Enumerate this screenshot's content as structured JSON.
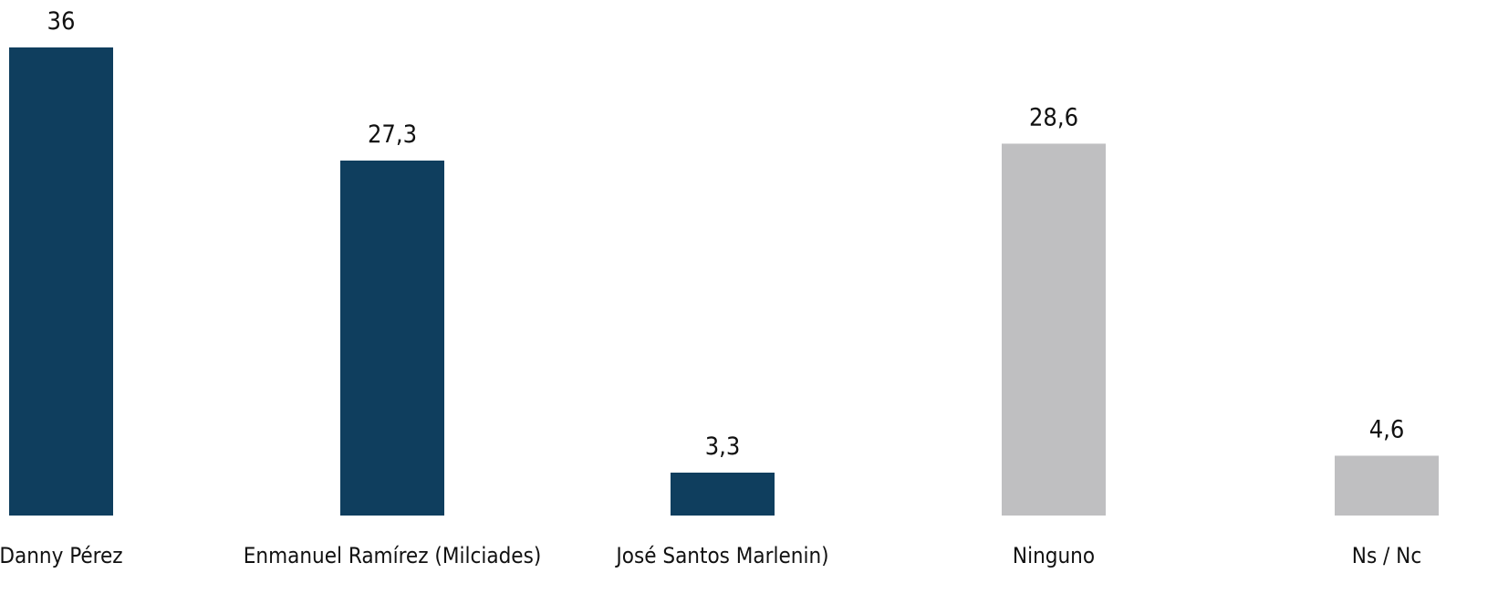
{
  "chart_data": {
    "type": "bar",
    "categories": [
      "Danny Pérez",
      "Enmanuel Ramírez (Milciades)",
      "José Santos Marlenin)",
      "Ninguno",
      "Ns / Nc"
    ],
    "values": [
      36,
      27.3,
      3.3,
      28.6,
      4.6
    ],
    "value_labels": [
      "36",
      "27,3",
      "3,3",
      "28,6",
      "4,6"
    ],
    "bar_colors": [
      "#0f3e5e",
      "#0f3e5e",
      "#0f3e5e",
      "#bfbfc1",
      "#bfbfc1"
    ],
    "title": "",
    "xlabel": "",
    "ylabel": "",
    "ylim": [
      0,
      36
    ],
    "grid": false,
    "legend": "none"
  }
}
